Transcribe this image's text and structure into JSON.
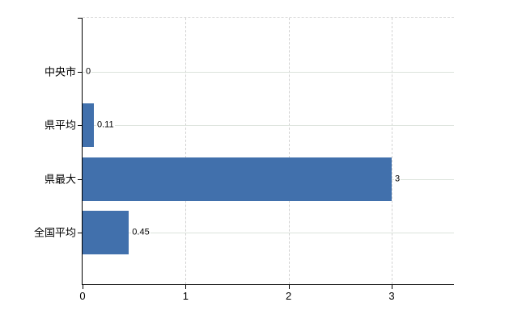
{
  "chart_data": {
    "type": "bar",
    "orientation": "horizontal",
    "title": "",
    "xlabel": "",
    "ylabel": "",
    "categories": [
      "中央市",
      "県平均",
      "県最大",
      "全国平均"
    ],
    "values": [
      0,
      0.11,
      3,
      0.45
    ],
    "value_labels": [
      "0",
      "0.11",
      "3",
      "0.45"
    ],
    "x_ticks": [
      0,
      1,
      2,
      3
    ],
    "x_tick_labels": [
      "0",
      "1",
      "2",
      "3"
    ],
    "xlim": [
      0,
      3.605
    ],
    "grid": true,
    "legend": false,
    "colors": {
      "bar": "#4170ac",
      "horizontal_gridline": "#dce3dc",
      "vertical_gridline": "#d2d2d2",
      "axis": "#000000",
      "text": "#000000",
      "background": "#ffffff"
    }
  }
}
